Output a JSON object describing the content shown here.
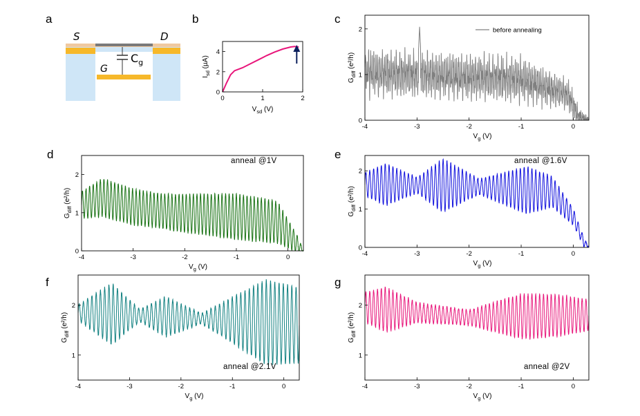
{
  "panel_labels": {
    "a": "a",
    "b": "b",
    "c": "c",
    "d": "d",
    "e": "e",
    "f": "f",
    "g": "g"
  },
  "schematic": {
    "source": "S",
    "drain": "D",
    "gate": "G",
    "cap": "C",
    "cap_sub": "g"
  },
  "colors": {
    "gray": "#808080",
    "green": "#157010",
    "blue": "#1010dd",
    "teal": "#118080",
    "pink": "#e8157a",
    "navy": "#0b1f5c"
  },
  "chart_data": [
    {
      "panel": "b",
      "type": "line",
      "color": "#e8157a",
      "xlabel_main": "V",
      "xlabel_sub": "sd",
      "xlabel_unit": " (V)",
      "ylabel_main": "I",
      "ylabel_sub": "sd",
      "ylabel_unit": " (µA)",
      "xlim": [
        0,
        2
      ],
      "ylim": [
        0,
        5
      ],
      "xticks": [
        0,
        1,
        2
      ],
      "yticks": [
        0,
        2,
        4
      ],
      "x": [
        0,
        0.1,
        0.2,
        0.3,
        0.5,
        0.7,
        0.9,
        1.1,
        1.3,
        1.5,
        1.7,
        1.8,
        1.9
      ],
      "y": [
        0,
        0.9,
        1.7,
        2.1,
        2.4,
        2.8,
        3.2,
        3.6,
        3.95,
        4.25,
        4.45,
        4.5,
        4.45
      ],
      "arrow_at_x": 1.85
    },
    {
      "panel": "c",
      "type": "line",
      "color": "#808080",
      "legend": "before annealing",
      "xlabel_main": "V",
      "xlabel_sub": "g",
      "xlabel_unit": " (V)",
      "ylabel_main": "G",
      "ylabel_sub": "diff",
      "ylabel_unit": " (e²/h)",
      "xlim": [
        -4,
        0.3
      ],
      "ylim": [
        0,
        2.3
      ],
      "xticks": [
        -4,
        -3,
        -2,
        -1,
        0
      ],
      "yticks": [
        0,
        1,
        2
      ],
      "pattern": {
        "type": "noisy",
        "periods": 130,
        "base": [
          [
            -4,
            1.05
          ],
          [
            -3,
            1.0
          ],
          [
            -1,
            0.9
          ],
          [
            -0.1,
            0.55
          ],
          [
            0.1,
            0.08
          ],
          [
            0.3,
            0.0
          ]
        ],
        "amp": [
          [
            -4,
            0.5
          ],
          [
            -1,
            0.5
          ],
          [
            0,
            0.3
          ],
          [
            0.3,
            0.0
          ]
        ],
        "spike_x": -2.95,
        "spike_y": 2.05
      }
    },
    {
      "panel": "d",
      "type": "line",
      "color": "#157010",
      "annotation": "anneal @1V",
      "xlabel_main": "V",
      "xlabel_sub": "g",
      "xlabel_unit": " (V)",
      "ylabel_main": "G",
      "ylabel_sub": "diff",
      "ylabel_unit": " (e²/h)",
      "xlim": [
        -4,
        0.3
      ],
      "ylim": [
        0,
        2.5
      ],
      "xticks": [
        -4,
        -3,
        -2,
        -1,
        0
      ],
      "yticks": [
        0,
        1,
        2
      ],
      "pattern": {
        "type": "osc",
        "periods": 62,
        "base": [
          [
            -4,
            1.2
          ],
          [
            -3.6,
            1.4
          ],
          [
            -3.0,
            1.15
          ],
          [
            -2.2,
            1.0
          ],
          [
            -1.0,
            0.9
          ],
          [
            -0.2,
            0.75
          ],
          [
            0.1,
            0.3
          ],
          [
            0.3,
            0.0
          ]
        ],
        "amp": [
          [
            -4,
            0.35
          ],
          [
            -3.6,
            0.5
          ],
          [
            -2.5,
            0.45
          ],
          [
            -1.0,
            0.6
          ],
          [
            -0.2,
            0.55
          ],
          [
            0.2,
            0.2
          ],
          [
            0.3,
            0.0
          ]
        ]
      }
    },
    {
      "panel": "e",
      "type": "line",
      "color": "#1010dd",
      "annotation": "anneal @1.6V",
      "xlabel_main": "V",
      "xlabel_sub": "g",
      "xlabel_unit": " (V)",
      "ylabel_main": "G",
      "ylabel_sub": "diff",
      "ylabel_unit": " (e²/h)",
      "xlim": [
        -4,
        0.3
      ],
      "ylim": [
        0,
        2.4
      ],
      "xticks": [
        -4,
        -3,
        -2,
        -1,
        0
      ],
      "yticks": [
        0,
        1,
        2
      ],
      "pattern": {
        "type": "osc",
        "periods": 58,
        "base": [
          [
            -4,
            1.65
          ],
          [
            -2,
            1.6
          ],
          [
            -0.4,
            1.45
          ],
          [
            0.0,
            0.8
          ],
          [
            0.2,
            0.15
          ],
          [
            0.3,
            0.0
          ]
        ],
        "amp": [
          [
            -4,
            0.3
          ],
          [
            -3.6,
            0.55
          ],
          [
            -3.0,
            0.2
          ],
          [
            -2.5,
            0.7
          ],
          [
            -1.8,
            0.2
          ],
          [
            -0.9,
            0.62
          ],
          [
            -0.3,
            0.35
          ],
          [
            0.2,
            0.12
          ],
          [
            0.3,
            0.0
          ]
        ]
      }
    },
    {
      "panel": "f",
      "type": "line",
      "color": "#118080",
      "annotation": "anneal @2.1V",
      "xlabel_main": "V",
      "xlabel_sub": "g",
      "xlabel_unit": " (V)",
      "ylabel_main": "G",
      "ylabel_sub": "diff",
      "ylabel_unit": " (e²/h)",
      "xlim": [
        -4,
        0.3
      ],
      "ylim": [
        0.5,
        2.6
      ],
      "xticks": [
        -4,
        -3,
        -2,
        -1,
        0
      ],
      "yticks": [
        1,
        2
      ],
      "pattern": {
        "type": "osc",
        "periods": 52,
        "base": [
          [
            -4,
            1.85
          ],
          [
            -1,
            1.7
          ],
          [
            0.3,
            1.6
          ]
        ],
        "amp": [
          [
            -4,
            0.15
          ],
          [
            -3.35,
            0.62
          ],
          [
            -2.8,
            0.12
          ],
          [
            -2.3,
            0.4
          ],
          [
            -1.6,
            0.1
          ],
          [
            -0.35,
            0.85
          ],
          [
            0.3,
            0.75
          ]
        ]
      }
    },
    {
      "panel": "g",
      "type": "line",
      "color": "#e8157a",
      "annotation": "anneal @2V",
      "xlabel_main": "V",
      "xlabel_sub": "g",
      "xlabel_unit": " (V)",
      "ylabel_main": "G",
      "ylabel_sub": "diff",
      "ylabel_unit": " (e²/h)",
      "xlim": [
        -4,
        0.3
      ],
      "ylim": [
        0.5,
        2.6
      ],
      "xticks": [
        -4,
        -3,
        -2,
        -1,
        0
      ],
      "yticks": [
        1,
        2
      ],
      "pattern": {
        "type": "osc",
        "periods": 58,
        "base": [
          [
            -4,
            1.95
          ],
          [
            -2,
            1.75
          ],
          [
            0.3,
            1.8
          ]
        ],
        "amp": [
          [
            -4,
            0.3
          ],
          [
            -3.6,
            0.45
          ],
          [
            -3.0,
            0.2
          ],
          [
            -2.0,
            0.15
          ],
          [
            -1.0,
            0.45
          ],
          [
            -0.3,
            0.42
          ],
          [
            0.3,
            0.3
          ]
        ]
      }
    }
  ]
}
